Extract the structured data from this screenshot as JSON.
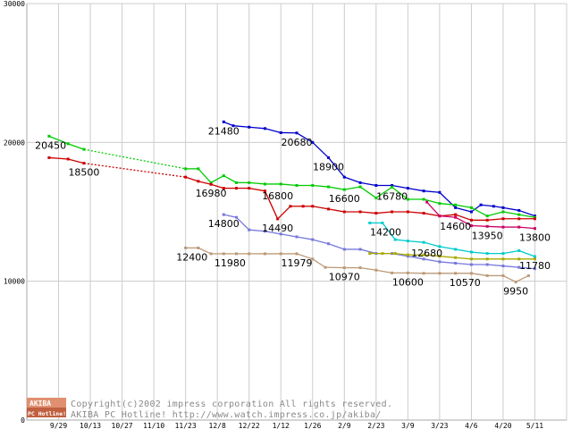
{
  "chart_data": {
    "type": "line",
    "title": "",
    "xlabel": "",
    "ylabel": "",
    "ylim": [
      0,
      30000
    ],
    "yticks": [
      0,
      10000,
      20000,
      30000
    ],
    "ytick_labels": [
      "0",
      "10000",
      "20000",
      "30000"
    ],
    "grid": true,
    "xrange": [
      0,
      17
    ],
    "x_tick_labels": [
      "9/29",
      "10/13",
      "10/27",
      "11/10",
      "11/23",
      "12/8",
      "12/22",
      "1/12",
      "1/26",
      "2/9",
      "2/23",
      "3/9",
      "3/23",
      "4/6",
      "4/20",
      "5/11"
    ],
    "x_tick_positions": [
      1,
      2,
      3,
      4,
      5,
      6,
      7,
      8,
      9,
      10,
      11,
      12,
      13,
      14,
      15,
      16
    ],
    "series": [
      {
        "name": "series-blue",
        "color": "#0000cc",
        "solid_from": 0,
        "points": [
          [
            6.2,
            21480
          ],
          [
            6.5,
            21200
          ],
          [
            7,
            21100
          ],
          [
            7.5,
            21000
          ],
          [
            8,
            20700
          ],
          [
            8.5,
            20680
          ],
          [
            9,
            20000
          ],
          [
            9.5,
            18900
          ],
          [
            10,
            17500
          ],
          [
            10.5,
            17100
          ],
          [
            11,
            16900
          ],
          [
            11.5,
            16900
          ],
          [
            12,
            16700
          ],
          [
            12.5,
            16500
          ],
          [
            13,
            16400
          ],
          [
            13.5,
            15300
          ],
          [
            14,
            15000
          ],
          [
            14.3,
            15500
          ],
          [
            14.7,
            15400
          ],
          [
            15,
            15300
          ],
          [
            15.5,
            15100
          ],
          [
            16,
            14700
          ]
        ]
      },
      {
        "name": "series-green",
        "color": "#00cc00",
        "solid_from": 3,
        "points": [
          [
            0.7,
            20450
          ],
          [
            1.3,
            19900
          ],
          [
            1.8,
            19500
          ],
          [
            5,
            18100
          ],
          [
            5.4,
            18100
          ],
          [
            5.8,
            17100
          ],
          [
            6.2,
            17600
          ],
          [
            6.6,
            17100
          ],
          [
            7,
            17100
          ],
          [
            7.5,
            17000
          ],
          [
            8,
            17000
          ],
          [
            8.5,
            16900
          ],
          [
            9,
            16900
          ],
          [
            9.5,
            16800
          ],
          [
            10,
            16600
          ],
          [
            10.5,
            16800
          ],
          [
            11,
            16000
          ],
          [
            11.5,
            16780
          ],
          [
            12,
            15900
          ],
          [
            12.5,
            15900
          ],
          [
            13,
            15600
          ],
          [
            13.5,
            15500
          ],
          [
            14,
            15300
          ],
          [
            14.5,
            14700
          ],
          [
            15,
            15000
          ],
          [
            15.5,
            14800
          ],
          [
            16,
            14600
          ]
        ]
      },
      {
        "name": "series-red",
        "color": "#cc0000",
        "solid_from": 2,
        "points": [
          [
            0.7,
            18900
          ],
          [
            1.3,
            18800
          ],
          [
            1.8,
            18500
          ],
          [
            5,
            17500
          ],
          [
            5.4,
            17200
          ],
          [
            5.8,
            16980
          ],
          [
            6.2,
            16700
          ],
          [
            6.6,
            16700
          ],
          [
            7,
            16700
          ],
          [
            7.5,
            16500
          ],
          [
            7.9,
            14490
          ],
          [
            8.3,
            15400
          ],
          [
            8.7,
            15400
          ],
          [
            9,
            15400
          ],
          [
            9.5,
            15200
          ],
          [
            10,
            15000
          ],
          [
            10.5,
            15000
          ],
          [
            11,
            14900
          ],
          [
            11.5,
            15000
          ],
          [
            12,
            15000
          ],
          [
            12.5,
            14900
          ],
          [
            13,
            14700
          ],
          [
            13.5,
            14800
          ],
          [
            14,
            14400
          ],
          [
            14.5,
            14400
          ],
          [
            15,
            14500
          ],
          [
            15.5,
            14500
          ],
          [
            16,
            14500
          ]
        ]
      },
      {
        "name": "series-magenta",
        "color": "#cc0066",
        "solid_from": 0,
        "points": [
          [
            12.6,
            15700
          ],
          [
            13,
            14700
          ],
          [
            13.5,
            14600
          ],
          [
            14,
            14000
          ],
          [
            14.5,
            13950
          ],
          [
            15,
            13900
          ],
          [
            15.5,
            13900
          ],
          [
            16,
            13800
          ]
        ]
      },
      {
        "name": "series-periwinkle",
        "color": "#7777dd",
        "solid_from": 0,
        "points": [
          [
            6.2,
            14800
          ],
          [
            6.6,
            14600
          ],
          [
            7,
            13700
          ],
          [
            7.5,
            13600
          ],
          [
            8,
            13400
          ],
          [
            8.5,
            13200
          ],
          [
            9,
            13000
          ],
          [
            9.5,
            12700
          ],
          [
            10,
            12300
          ],
          [
            10.5,
            12300
          ],
          [
            11,
            12000
          ],
          [
            11.5,
            12000
          ],
          [
            12,
            11800
          ],
          [
            12.5,
            11600
          ],
          [
            13,
            11400
          ],
          [
            13.5,
            11300
          ],
          [
            14,
            11200
          ],
          [
            14.5,
            11200
          ],
          [
            15,
            11100
          ],
          [
            15.5,
            11000
          ],
          [
            16,
            10900
          ]
        ]
      },
      {
        "name": "series-cyan",
        "color": "#00cccc",
        "solid_from": 0,
        "points": [
          [
            10.8,
            14200
          ],
          [
            11.2,
            14200
          ],
          [
            11.6,
            13000
          ],
          [
            12,
            12900
          ],
          [
            12.5,
            12800
          ],
          [
            13,
            12500
          ],
          [
            13.5,
            12300
          ],
          [
            14,
            12100
          ],
          [
            14.5,
            12000
          ],
          [
            15,
            12000
          ],
          [
            15.5,
            12200
          ],
          [
            16,
            11780
          ]
        ]
      },
      {
        "name": "series-olive",
        "color": "#aaaa00",
        "solid_from": 0,
        "points": [
          [
            10.8,
            12000
          ],
          [
            11.2,
            12000
          ],
          [
            11.6,
            12000
          ],
          [
            12,
            11900
          ],
          [
            12.5,
            11900
          ],
          [
            13,
            11800
          ],
          [
            13.5,
            11700
          ],
          [
            14,
            11600
          ],
          [
            14.5,
            11600
          ],
          [
            15,
            11600
          ],
          [
            15.5,
            11600
          ],
          [
            16,
            11600
          ]
        ]
      },
      {
        "name": "series-tan",
        "color": "#bb9977",
        "solid_from": 0,
        "points": [
          [
            5,
            12400
          ],
          [
            5.4,
            12400
          ],
          [
            5.8,
            11980
          ],
          [
            6.2,
            11980
          ],
          [
            6.6,
            11980
          ],
          [
            7,
            11980
          ],
          [
            7.5,
            11979
          ],
          [
            8,
            11979
          ],
          [
            8.5,
            11979
          ],
          [
            9,
            11600
          ],
          [
            9.4,
            11000
          ],
          [
            10,
            10970
          ],
          [
            10.5,
            10970
          ],
          [
            11,
            10800
          ],
          [
            11.5,
            10600
          ],
          [
            12,
            10600
          ],
          [
            12.5,
            10570
          ],
          [
            13,
            10570
          ],
          [
            13.5,
            10570
          ],
          [
            14,
            10570
          ],
          [
            14.5,
            10400
          ],
          [
            15,
            10400
          ],
          [
            15.4,
            9950
          ],
          [
            15.8,
            10400
          ]
        ]
      }
    ],
    "annotations": [
      {
        "text": "20450",
        "x": 0.75,
        "y": 20450
      },
      {
        "text": "18500",
        "x": 1.8,
        "y": 18500
      },
      {
        "text": "21480",
        "x": 6.2,
        "y": 21480
      },
      {
        "text": "20680",
        "x": 8.5,
        "y": 20680
      },
      {
        "text": "18900",
        "x": 9.5,
        "y": 18900
      },
      {
        "text": "16980",
        "x": 5.8,
        "y": 16980
      },
      {
        "text": "16800",
        "x": 7.9,
        "y": 16800
      },
      {
        "text": "16600",
        "x": 10.0,
        "y": 16600
      },
      {
        "text": "16780",
        "x": 11.5,
        "y": 16780
      },
      {
        "text": "14800",
        "x": 6.2,
        "y": 14800
      },
      {
        "text": "14490",
        "x": 7.9,
        "y": 14490
      },
      {
        "text": "14200",
        "x": 11.3,
        "y": 14200
      },
      {
        "text": "14600",
        "x": 13.5,
        "y": 14600
      },
      {
        "text": "13950",
        "x": 14.5,
        "y": 13950
      },
      {
        "text": "13800",
        "x": 16.0,
        "y": 13800
      },
      {
        "text": "12400",
        "x": 5.2,
        "y": 12400
      },
      {
        "text": "11980",
        "x": 6.4,
        "y": 11980
      },
      {
        "text": "11979",
        "x": 8.5,
        "y": 11979
      },
      {
        "text": "12680",
        "x": 12.6,
        "y": 12680
      },
      {
        "text": "11780",
        "x": 16.0,
        "y": 11780
      },
      {
        "text": "10970",
        "x": 10.0,
        "y": 10970
      },
      {
        "text": "10600",
        "x": 12.0,
        "y": 10600
      },
      {
        "text": "10570",
        "x": 13.8,
        "y": 10570
      },
      {
        "text": "9950",
        "x": 15.4,
        "y": 9950
      }
    ]
  },
  "footer": {
    "logo_top": "AKIBA",
    "logo_bottom": "PC Hotline!",
    "copyright_line1": "Copyright(c)2002 impress corporation All rights reserved.",
    "copyright_line2": "AKIBA PC Hotline! http://www.watch.impress.co.jp/akiba/"
  },
  "colors": {
    "grid": "#cccccc",
    "axis": "#aaaaaa",
    "logo_bg": "#e09070",
    "logo_bg2": "#c06040"
  }
}
